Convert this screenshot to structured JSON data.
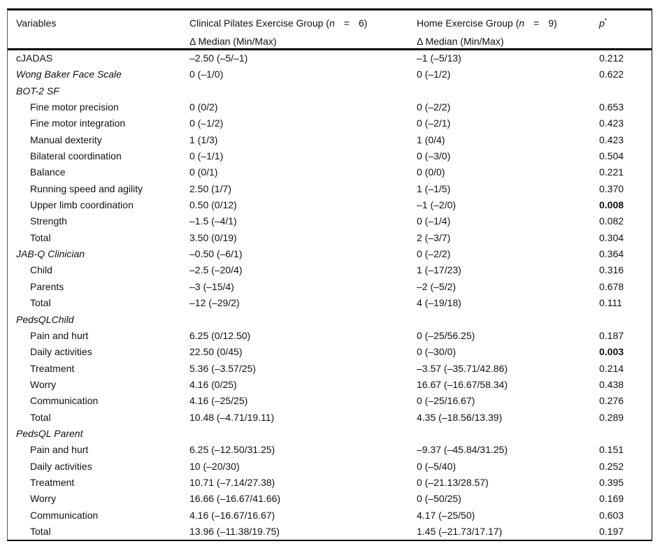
{
  "table": {
    "header": {
      "col1": "Variables",
      "col2": {
        "prefix": "Clinical Pilates Exercise Group (",
        "n": "n",
        "eq": "=",
        "count": "6)",
        "sub": "Δ Median (Min/Max)"
      },
      "col3": {
        "prefix": "Home Exercise Group (",
        "n": "n",
        "eq": "=",
        "count": "9)",
        "sub": "Δ Median (Min/Max)"
      },
      "col4": {
        "p": "p",
        "star": "*"
      }
    },
    "rows": [
      {
        "label": "cJADAS",
        "indent": false,
        "italic": false,
        "cpeg": "–2.50 (–5/–1)",
        "heg": "–1 (–5/13)",
        "p": "0.212",
        "p_bold": false
      },
      {
        "label": "Wong Baker Face Scale",
        "indent": false,
        "italic": true,
        "cpeg": "0 (–1/0)",
        "heg": "0 (–1/2)",
        "p": "0.622",
        "p_bold": false
      },
      {
        "label": "BOT-2 SF",
        "indent": false,
        "italic": true,
        "cpeg": "",
        "heg": "",
        "p": "",
        "p_bold": false
      },
      {
        "label": "Fine motor precision",
        "indent": true,
        "italic": false,
        "cpeg": "0 (0/2)",
        "heg": "0 (–2/2)",
        "p": "0.653",
        "p_bold": false
      },
      {
        "label": "Fine motor integration",
        "indent": true,
        "italic": false,
        "cpeg": "0 (–1/2)",
        "heg": "0 (–2/1)",
        "p": "0.423",
        "p_bold": false
      },
      {
        "label": "Manual dexterity",
        "indent": true,
        "italic": false,
        "cpeg": "1 (1/3)",
        "heg": "1 (0/4)",
        "p": "0.423",
        "p_bold": false
      },
      {
        "label": "Bilateral coordination",
        "indent": true,
        "italic": false,
        "cpeg": "0 (–1/1)",
        "heg": "0 (–3/0)",
        "p": "0.504",
        "p_bold": false
      },
      {
        "label": "Balance",
        "indent": true,
        "italic": false,
        "cpeg": "0 (0/1)",
        "heg": "0 (0/0)",
        "p": "0.221",
        "p_bold": false
      },
      {
        "label": "Running speed and agility",
        "indent": true,
        "italic": false,
        "cpeg": "2.50 (1/7)",
        "heg": "1 (–1/5)",
        "p": "0.370",
        "p_bold": false
      },
      {
        "label": "Upper limb coordination",
        "indent": true,
        "italic": false,
        "cpeg": "0.50 (0/12)",
        "heg": "–1 (–2/0)",
        "p": "0.008",
        "p_bold": true
      },
      {
        "label": "Strength",
        "indent": true,
        "italic": false,
        "cpeg": "–1.5 (–4/1)",
        "heg": "0 (–1/4)",
        "p": "0.082",
        "p_bold": false
      },
      {
        "label": "Total",
        "indent": true,
        "italic": false,
        "cpeg": "3.50 (0/19)",
        "heg": "2 (–3/7)",
        "p": "0.304",
        "p_bold": false
      },
      {
        "label": "JAB-Q Clinician",
        "indent": false,
        "italic": true,
        "cpeg": "–0.50 (–6/1)",
        "heg": "0 (–2/2)",
        "p": "0.364",
        "p_bold": false
      },
      {
        "label": "Child",
        "indent": true,
        "italic": false,
        "cpeg": "–2.5 (–20/4)",
        "heg": "1 (–17/23)",
        "p": "0.316",
        "p_bold": false
      },
      {
        "label": "Parents",
        "indent": true,
        "italic": false,
        "cpeg": "–3 (–15/4)",
        "heg": "–2 (–5/2)",
        "p": "0.678",
        "p_bold": false
      },
      {
        "label": "Total",
        "indent": true,
        "italic": false,
        "cpeg": "–12 (–29/2)",
        "heg": "4 (–19/18)",
        "p": "0.111",
        "p_bold": false
      },
      {
        "label": "PedsQLChild",
        "indent": false,
        "italic": true,
        "cpeg": "",
        "heg": "",
        "p": "",
        "p_bold": false
      },
      {
        "label": "Pain and hurt",
        "indent": true,
        "italic": false,
        "cpeg": "6.25 (0/12.50)",
        "heg": "0 (–25/56.25)",
        "p": "0.187",
        "p_bold": false
      },
      {
        "label": "Daily activities",
        "indent": true,
        "italic": false,
        "cpeg": "22.50 (0/45)",
        "heg": "0 (–30/0)",
        "p": "0.003",
        "p_bold": true
      },
      {
        "label": "Treatment",
        "indent": true,
        "italic": false,
        "cpeg": "5.36 (–3.57/25)",
        "heg": "–3.57 (–35.71/42.86)",
        "p": "0.214",
        "p_bold": false
      },
      {
        "label": "Worry",
        "indent": true,
        "italic": false,
        "cpeg": "4.16 (0/25)",
        "heg": "16.67 (–16.67/58.34)",
        "p": "0.438",
        "p_bold": false
      },
      {
        "label": "Communication",
        "indent": true,
        "italic": false,
        "cpeg": "4.16 (–25/25)",
        "heg": "0 (–25/16.67)",
        "p": "0.276",
        "p_bold": false
      },
      {
        "label": "Total",
        "indent": true,
        "italic": false,
        "cpeg": "10.48 (–4.71/19.11)",
        "heg": "4.35 (–18.56/13.39)",
        "p": "0.289",
        "p_bold": false
      },
      {
        "label": "PedsQL Parent",
        "indent": false,
        "italic": true,
        "cpeg": "",
        "heg": "",
        "p": "",
        "p_bold": false
      },
      {
        "label": "Pain and hurt",
        "indent": true,
        "italic": false,
        "cpeg": "6.25 (–12.50/31.25)",
        "heg": "–9.37 (–45.84/31.25)",
        "p": "0.151",
        "p_bold": false
      },
      {
        "label": "Daily activities",
        "indent": true,
        "italic": false,
        "cpeg": "10 (–20/30)",
        "heg": "0 (–5/40)",
        "p": "0.252",
        "p_bold": false
      },
      {
        "label": "Treatment",
        "indent": true,
        "italic": false,
        "cpeg": "10.71 (–7.14/27.38)",
        "heg": "0 (–21.13/28.57)",
        "p": "0.395",
        "p_bold": false
      },
      {
        "label": "Worry",
        "indent": true,
        "italic": false,
        "cpeg": "16.66 (–16.67/41.66)",
        "heg": "0 (–50/25)",
        "p": "0.169",
        "p_bold": false
      },
      {
        "label": "Communication",
        "indent": true,
        "italic": false,
        "cpeg": "4.16 (–16.67/16.67)",
        "heg": "4.17 (–25/50)",
        "p": "0.603",
        "p_bold": false
      },
      {
        "label": "Total",
        "indent": true,
        "italic": false,
        "cpeg": "13.96 (–11.38/19.75)",
        "heg": "1.45 (–21.73/17.17)",
        "p": "0.197",
        "p_bold": false
      }
    ]
  }
}
